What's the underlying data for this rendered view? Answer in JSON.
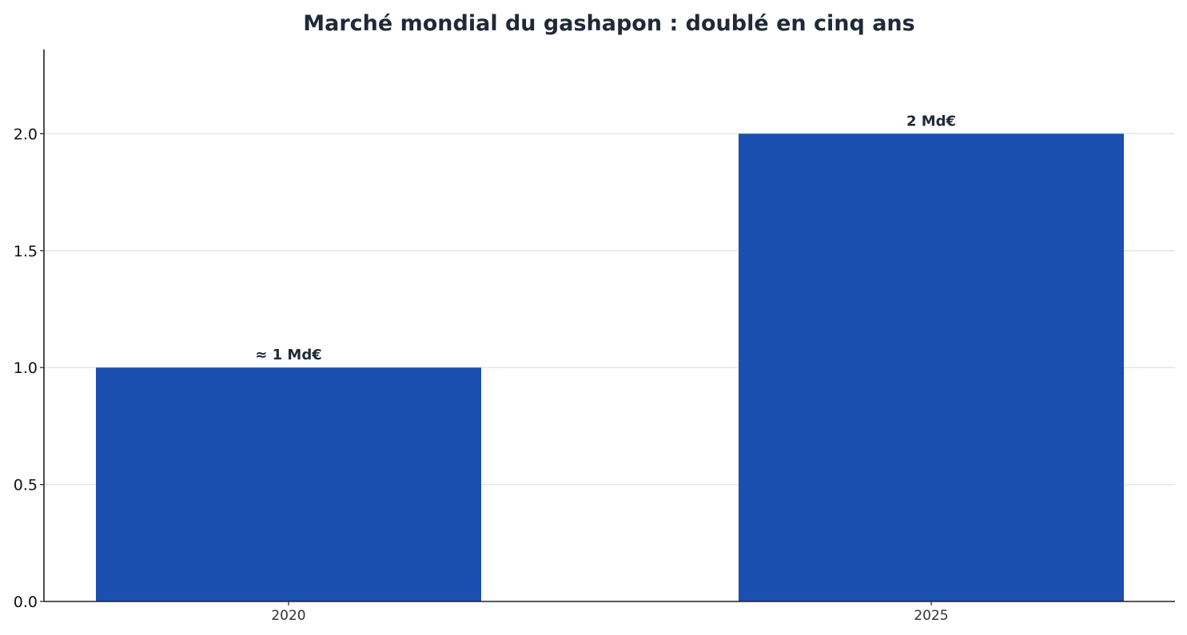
{
  "chart_data": {
    "type": "bar",
    "title": "Marché mondial du gashapon : doublé en cinq ans",
    "xlabel": "",
    "ylabel": "",
    "categories": [
      "2020",
      "2025"
    ],
    "values": [
      1.0,
      2.0
    ],
    "data_labels": [
      "≈ 1 Md€",
      "2 Md€"
    ],
    "ylim": [
      0,
      2.36
    ],
    "yticks": [
      "0.0",
      "0.5",
      "1.0",
      "1.5",
      "2.0"
    ],
    "ytick_values": [
      0,
      0.5,
      1.0,
      1.5,
      2.0
    ],
    "grid": "horizontal",
    "legend": "none",
    "colors": {
      "bar": "#1a4fb0",
      "grid": "#e3e6ea",
      "axis": "#222222",
      "text": "#1f2937"
    }
  }
}
